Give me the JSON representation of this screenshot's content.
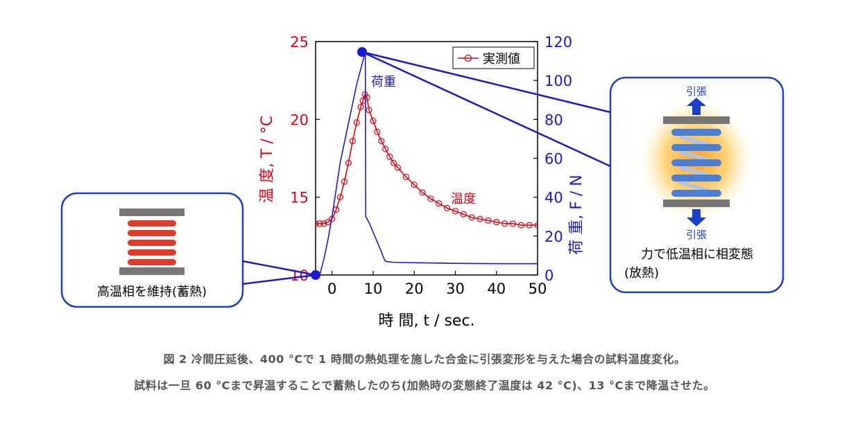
{
  "chart_data": {
    "type": "line",
    "xlabel": "時 間, t / sec.",
    "ylabel_left": "温 度, T / °C",
    "ylabel_right": "荷 重, F / N",
    "xlim": [
      -4,
      50
    ],
    "ylim_left": [
      10,
      25
    ],
    "ylim_right": [
      0,
      120
    ],
    "x_ticks": [
      0,
      10,
      20,
      30,
      40,
      50
    ],
    "y_ticks_left": [
      10,
      15,
      20,
      25
    ],
    "y_ticks_right": [
      0,
      20,
      40,
      60,
      80,
      100,
      120
    ],
    "legend": {
      "label": "実測値",
      "placement": "top-right"
    },
    "series": [
      {
        "name": "温度",
        "axis": "left",
        "color": "#e60012",
        "marker": "open-circle",
        "x": [
          -4,
          -3,
          -2,
          -1,
          0,
          1,
          2,
          3,
          4,
          5,
          6,
          7,
          7.5,
          8,
          8.5,
          9,
          10,
          11,
          12,
          13,
          14,
          15,
          16,
          18,
          20,
          22,
          24,
          26,
          28,
          30,
          32,
          34,
          36,
          38,
          40,
          42,
          44,
          46,
          48,
          50
        ],
        "y": [
          13.3,
          13.3,
          13.3,
          13.4,
          13.6,
          14.2,
          15.0,
          16.0,
          17.2,
          18.6,
          19.8,
          20.8,
          21.2,
          21.6,
          21.4,
          20.6,
          19.9,
          19.2,
          18.6,
          18.1,
          17.6,
          17.2,
          16.9,
          16.3,
          15.8,
          15.3,
          14.9,
          14.6,
          14.3,
          14.1,
          13.9,
          13.7,
          13.6,
          13.5,
          13.4,
          13.3,
          13.3,
          13.2,
          13.2,
          13.2
        ]
      },
      {
        "name": "荷重",
        "axis": "right",
        "color": "#1a1acd",
        "marker": "none",
        "x": [
          -3,
          -2,
          -1,
          0,
          1,
          2,
          3,
          4,
          5,
          6,
          7,
          7.5,
          8,
          8.1,
          8.2,
          9,
          10,
          11,
          12,
          12.5,
          13,
          15,
          20,
          30,
          40,
          50
        ],
        "y": [
          0,
          8,
          18,
          30,
          44,
          58,
          68,
          78,
          88,
          98,
          106,
          110,
          114,
          115,
          30,
          27,
          22,
          17,
          12,
          9,
          7,
          6.5,
          6.3,
          6.0,
          5.8,
          5.8
        ]
      }
    ],
    "annotations": {
      "load_label": "荷重",
      "temp_label": "温度"
    }
  },
  "inset_left": {
    "label": "高温相を維持(蓄熱)"
  },
  "inset_right": {
    "top_label": "引張",
    "bottom_label": "引張",
    "line1": "力で低温相に相変態",
    "line2": "(放熱)"
  },
  "caption": {
    "line1": "図 2 冷間圧延後、400 °Cで 1 時間の熱処理を施した合金に引張変形を与えた場合の試料温度変化。",
    "line2": "試料は一旦 60 °Cまで昇温することで蓄熱したのち(加熱時の変態終了温度は 42 °C)、13 °Cまで降温させた。"
  },
  "colors": {
    "temperature": "#e60012",
    "load": "#1a1acd",
    "inset_border": "#1a3fcc",
    "arrow": "#1a3fcc",
    "coil_hot": "#e03a2a",
    "coil_cold": "#4a7fd4",
    "plate": "#777777"
  }
}
